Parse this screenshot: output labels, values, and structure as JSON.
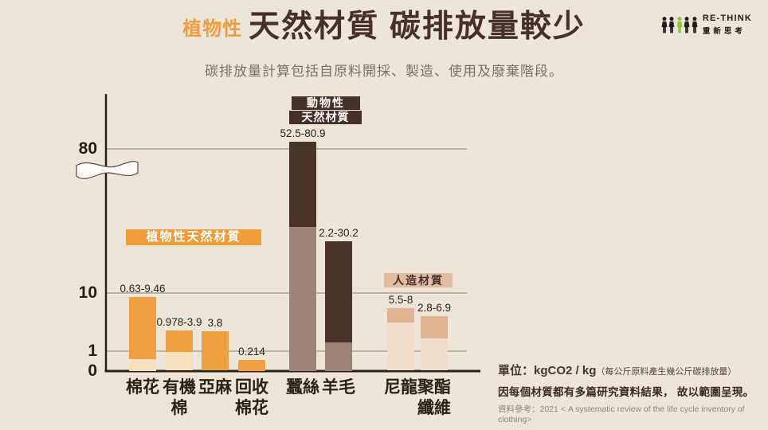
{
  "header": {
    "title_highlight": "植物性",
    "title_main": "天然材質 碳排放量較少",
    "subtitle": "碳排放量計算包括自原料開採、製造、使用及廢棄階段。"
  },
  "logo": {
    "brand": "RE-THINK",
    "brand_zh": "重新思考"
  },
  "badges": {
    "plant": "植物性天然材質",
    "animal_line1": "動物性",
    "animal_line2": "天然材質",
    "synthetic": "人造材質"
  },
  "chart_data": {
    "type": "bar",
    "title": "植物性天然材質 碳排放量較少",
    "subtitle": "碳排放量計算包括自原料開採、製造、使用及廢棄階段。",
    "unit": "kgCO2 / kg",
    "y_ticks": [
      0,
      1,
      10,
      80
    ],
    "y_axis_note": "broken axis: wavy break between 10 and 80 region",
    "grid": true,
    "categories": [
      "棉花",
      "有機棉",
      "亞麻",
      "回收棉花",
      "蠶絲",
      "羊毛",
      "尼龍",
      "聚酯纖維"
    ],
    "groups": [
      {
        "id": "plant",
        "label": "植物性天然材質"
      },
      {
        "id": "animal",
        "label": "動物性天然材質"
      },
      {
        "id": "synthetic",
        "label": "人造材質"
      }
    ],
    "bars": [
      {
        "category": "棉花",
        "label_lines": [
          "棉花"
        ],
        "group": "plant",
        "min": 0.63,
        "max": 9.46,
        "range_label": "0.63-9.46"
      },
      {
        "category": "有機棉",
        "label_lines": [
          "有機",
          "棉"
        ],
        "group": "plant",
        "min": 0.978,
        "max": 3.9,
        "range_label": "0.978-3.9"
      },
      {
        "category": "亞麻",
        "label_lines": [
          "亞麻"
        ],
        "group": "plant",
        "min": null,
        "max": 3.8,
        "range_label": "3.8"
      },
      {
        "category": "回收棉花",
        "label_lines": [
          "回收",
          "棉花"
        ],
        "group": "plant",
        "min": null,
        "max": 0.214,
        "range_label": "0.214"
      },
      {
        "category": "蠶絲",
        "label_lines": [
          "蠶絲"
        ],
        "group": "animal",
        "min": 52.5,
        "max": 80.9,
        "range_label": "52.5-80.9"
      },
      {
        "category": "羊毛",
        "label_lines": [
          "羊毛"
        ],
        "group": "animal",
        "min": 2.2,
        "max": 30.2,
        "range_label": "2.2-30.2"
      },
      {
        "category": "尼龍",
        "label_lines": [
          "尼龍"
        ],
        "group": "synthetic",
        "min": 5.5,
        "max": 8,
        "range_label": "5.5-8"
      },
      {
        "category": "聚酯纖維",
        "label_lines": [
          "聚酯",
          "纖維"
        ],
        "group": "synthetic",
        "min": 2.8,
        "max": 6.9,
        "range_label": "2.8-6.9"
      }
    ]
  },
  "footer": {
    "unit_label": "單位：kgCO2 / kg",
    "unit_note": "（每公斤原料產生幾公斤碳排放量）",
    "range_note": "因每個材質都有多篇研究資料結果， 故以範圍呈現。",
    "reference": "資料參考：2021 < A systematic review of the life cycle inventory of clothing>"
  },
  "colors": {
    "bg": "#ECE5DA",
    "orange": "#F09C3B",
    "brown": "#46302A",
    "green": "#8CC63E",
    "tan-badge": "#E2BD9F",
    "plant-strong": "#F0A041",
    "plant-muted": "#F6E0BE",
    "animal-strong": "#4A332B",
    "animal-muted": "#9B837A",
    "synthetic-strong": "#E1B493",
    "synthetic-muted": "#F0DCC8",
    "grid": "#8B8173",
    "axis": "#292019"
  }
}
